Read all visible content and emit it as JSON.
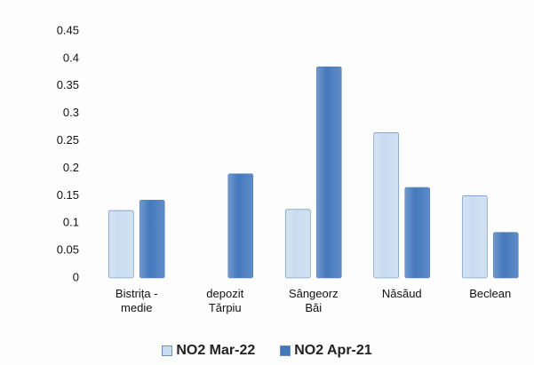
{
  "chart_data": {
    "type": "bar",
    "categories": [
      "Bistrița - medie",
      "depozit Tărpiu",
      "Sângeorz Băi",
      "Năsăud",
      "Beclean"
    ],
    "series": [
      {
        "name": "NO2 Mar-22",
        "color": "#c9dcf0",
        "values": [
          0.123,
          null,
          0.125,
          0.265,
          0.15
        ]
      },
      {
        "name": "NO2 Apr-21",
        "color": "#4478bd",
        "values": [
          0.142,
          0.19,
          0.385,
          0.165,
          0.083
        ]
      }
    ],
    "ylim": [
      0,
      0.45
    ],
    "yticks": [
      0,
      0.05,
      0.1,
      0.15,
      0.2,
      0.25,
      0.3,
      0.35,
      0.4,
      0.45
    ],
    "grid": false,
    "legend": "bottom"
  }
}
